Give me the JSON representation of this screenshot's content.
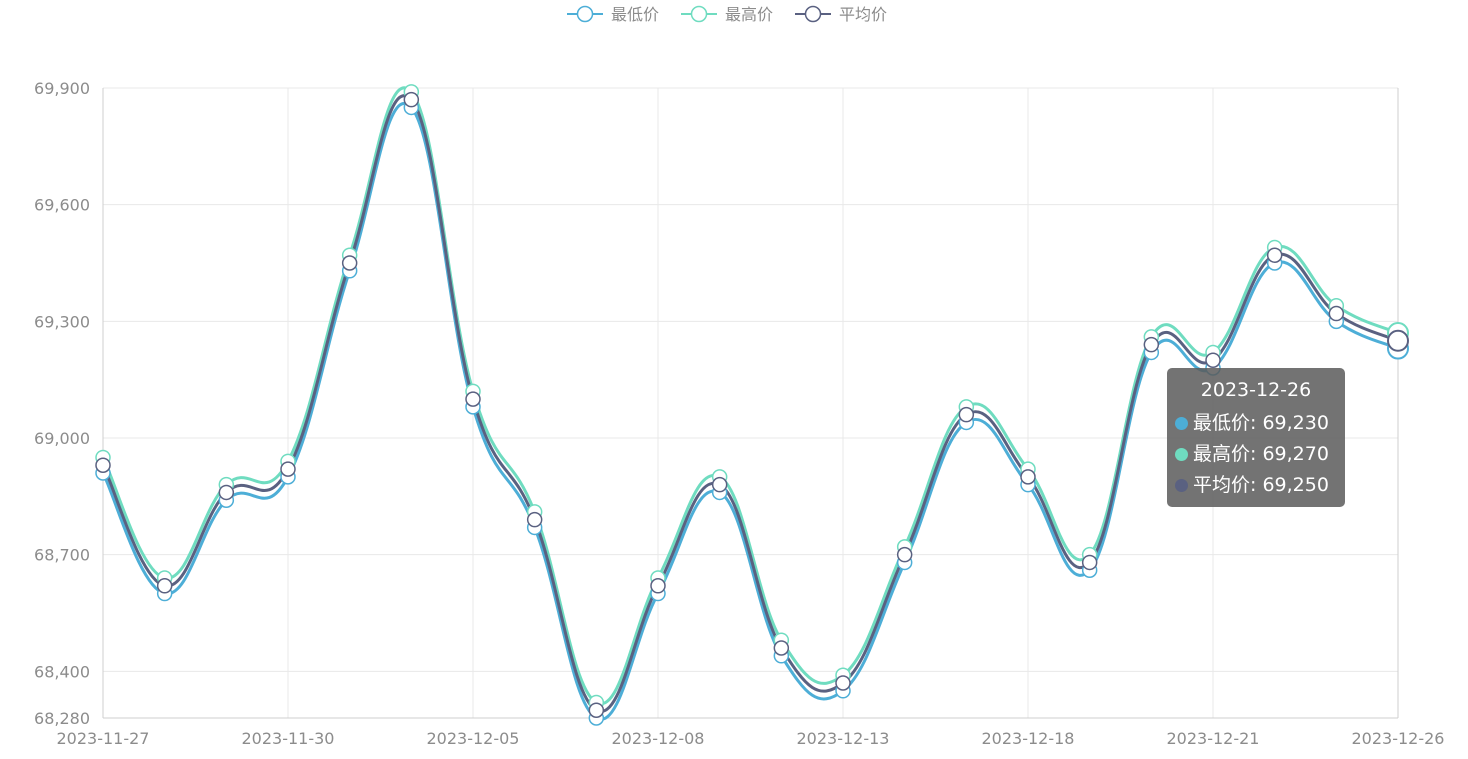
{
  "chart_data": {
    "type": "line",
    "smooth": true,
    "x": [
      "2023-11-27",
      "2023-11-28",
      "2023-11-29",
      "2023-11-30",
      "2023-12-01",
      "2023-12-04",
      "2023-12-05",
      "2023-12-06",
      "2023-12-07",
      "2023-12-08",
      "2023-12-11",
      "2023-12-12",
      "2023-12-13",
      "2023-12-14",
      "2023-12-15",
      "2023-12-18",
      "2023-12-19",
      "2023-12-20",
      "2023-12-21",
      "2023-12-22",
      "2023-12-25",
      "2023-12-26"
    ],
    "x_tick_labels": [
      "2023-11-27",
      "2023-11-30",
      "2023-12-05",
      "2023-12-08",
      "2023-12-13",
      "2023-12-18",
      "2023-12-21",
      "2023-12-26"
    ],
    "series": [
      {
        "name": "最低价",
        "color": "#4daed7",
        "values": [
          68910,
          68600,
          68840,
          68900,
          69430,
          69850,
          69080,
          68770,
          68280,
          68600,
          68860,
          68440,
          68350,
          68680,
          69040,
          68880,
          68660,
          69220,
          69180,
          69450,
          69300,
          69230
        ]
      },
      {
        "name": "最高价",
        "color": "#6fdcc0",
        "values": [
          68950,
          68640,
          68880,
          68940,
          69470,
          69890,
          69120,
          68810,
          68320,
          68640,
          68900,
          68480,
          68390,
          68720,
          69080,
          68920,
          68700,
          69260,
          69220,
          69490,
          69340,
          69270
        ]
      },
      {
        "name": "平均价",
        "color": "#5a6181",
        "values": [
          68930,
          68620,
          68860,
          68920,
          69450,
          69870,
          69100,
          68790,
          68300,
          68620,
          68880,
          68460,
          68370,
          68700,
          69060,
          68900,
          68680,
          69240,
          69200,
          69470,
          69320,
          69250
        ]
      }
    ],
    "ylim": [
      68280,
      69900
    ],
    "y_ticks": [
      68280,
      68400,
      68700,
      69000,
      69300,
      69600,
      69900
    ],
    "y_tick_labels": [
      "68,280",
      "68,400",
      "68,700",
      "69,000",
      "69,300",
      "69,600",
      "69,900"
    ],
    "grid": true,
    "legend_position": "top-center",
    "highlighted_index": 21
  },
  "tooltip": {
    "date": "2023-12-26",
    "rows": [
      {
        "label": "最低价: 69,230",
        "color": "#4daed7"
      },
      {
        "label": "最高价: 69,270",
        "color": "#6fdcc0"
      },
      {
        "label": "平均价: 69,250",
        "color": "#5a6181"
      }
    ]
  }
}
